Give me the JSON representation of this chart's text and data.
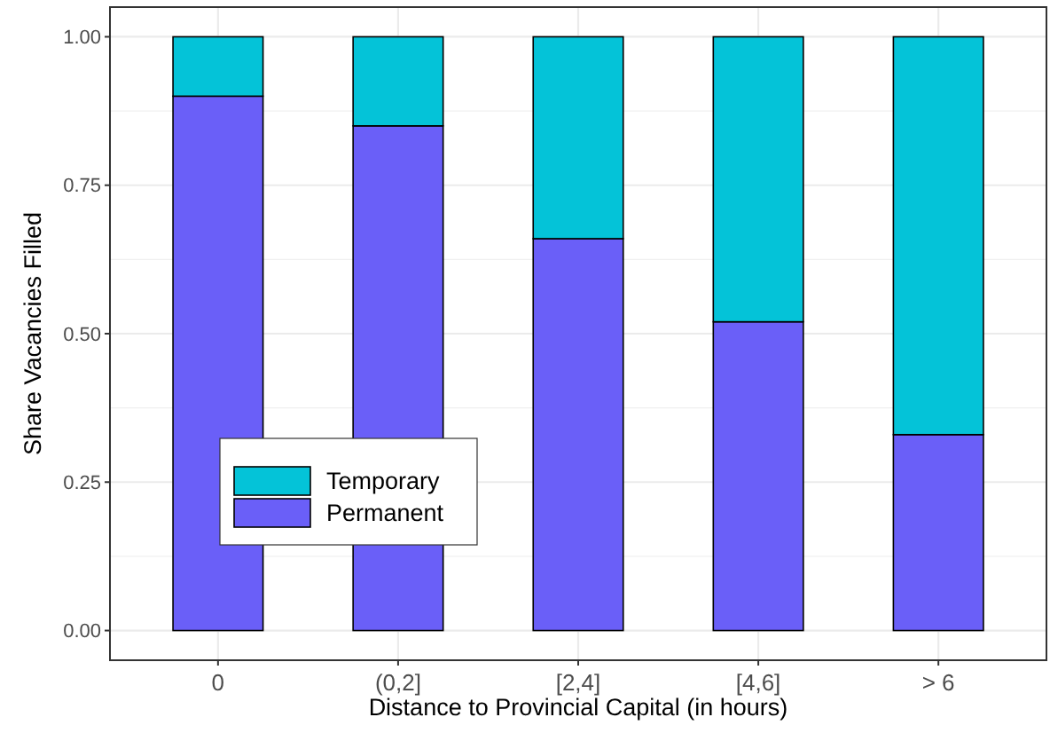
{
  "chart_data": {
    "type": "bar",
    "stacked": true,
    "xlabel": "Distance to Provincial Capital (in hours)",
    "ylabel": "Share Vacancies Filled",
    "categories": [
      "0",
      "(0,2]",
      "[2,4]",
      "[4,6]",
      "> 6"
    ],
    "series": [
      {
        "name": "Permanent",
        "color": "#6a5ff8",
        "values": [
          0.9,
          0.85,
          0.66,
          0.52,
          0.33
        ]
      },
      {
        "name": "Temporary",
        "color": "#04c3d8",
        "values": [
          0.1,
          0.15,
          0.34,
          0.48,
          0.67
        ]
      }
    ],
    "ylim": [
      -0.05,
      1.05
    ],
    "yticks": [
      {
        "value": 0,
        "label": "0.00"
      },
      {
        "value": 0.25,
        "label": "0.25"
      },
      {
        "value": 0.5,
        "label": "0.50"
      },
      {
        "value": 0.75,
        "label": "0.75"
      },
      {
        "value": 1,
        "label": "1.00"
      }
    ],
    "grid": true,
    "legend": "bottom left"
  }
}
